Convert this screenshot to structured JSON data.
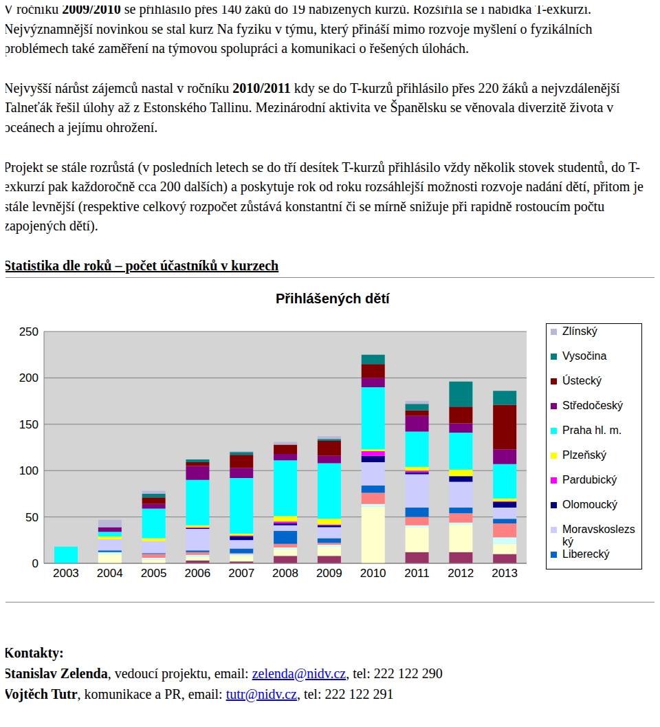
{
  "paragraphs": [
    [
      {
        "text": "V ročníku "
      },
      {
        "text": "2009/2010",
        "bold": true
      },
      {
        "text": " se přihlásilo přes 140 žáků do 19 nabízených kurzů. Rozšířila se i nabídka T-exkurzí. Nejvýznamnější novinkou se stal kurz Na fyziku v týmu, který přináší mimo rozvoje myšlení o fyzikálních problémech také zaměření na týmovou spolupráci a komunikaci o řešených úlohách."
      }
    ],
    [
      {
        "text": "Nejvyšší nárůst zájemců nastal v ročníku "
      },
      {
        "text": "2010/2011",
        "bold": true
      },
      {
        "text": " kdy se do T-kurzů přihlásilo přes 220 žáků a nejvzdálenější Talneťák řešil úlohy až z Estonského Tallinu. Mezinárodní aktivita ve Španělsku se věnovala diverzitě života v oceánech a jejímu ohrožení."
      }
    ],
    [
      {
        "text": "Projekt se stále rozrůstá (v posledních letech se do tří desítek T-kurzů přihlásilo vždy několik stovek studentů, do T-exkurzí pak každoročně cca 200 dalších) a poskytuje rok od roku rozsáhlejší možnosti rozvoje nadání dětí, přitom je stále levnější (respektive celkový rozpočet zůstává konstantní či se mírně snižuje při rapidně rostoucím počtu zapojených dětí)."
      }
    ]
  ],
  "heading": "Statistika dle roků – počet účastníků v kurzech",
  "chart_data": {
    "type": "bar",
    "title": "Přihlášených dětí",
    "stacked": true,
    "grid": true,
    "legend": "right",
    "categories": [
      "2003",
      "2004",
      "2005",
      "2006",
      "2007",
      "2008",
      "2009",
      "2010",
      "2011",
      "2012",
      "2013"
    ],
    "ylim": [
      0,
      250
    ],
    "yticks": [
      0,
      50,
      100,
      150,
      200,
      250
    ],
    "series": [
      {
        "color": "#993366",
        "values": [
          0,
          0,
          0,
          3,
          2,
          8,
          8,
          0,
          12,
          12,
          10
        ]
      },
      {
        "color": "#FFFFCC",
        "values": [
          0,
          10,
          4,
          4,
          6,
          7,
          10,
          61,
          27,
          30,
          11
        ]
      },
      {
        "color": "#CCFFFF",
        "values": [
          0,
          2,
          2,
          2,
          2,
          2,
          2,
          3,
          2,
          2,
          7
        ]
      },
      {
        "color": "#FF8080",
        "values": [
          0,
          0,
          4,
          3,
          1,
          4,
          2,
          12,
          9,
          10,
          15
        ]
      },
      {
        "name": "Liberecký",
        "color": "#0066CC",
        "values": [
          0,
          2,
          1,
          2,
          5,
          14,
          5,
          8,
          10,
          6,
          5
        ]
      },
      {
        "name": "Moravskoslezský",
        "color": "#CCCCFF",
        "values": [
          0,
          12,
          13,
          23,
          9,
          6,
          12,
          25,
          36,
          28,
          12
        ]
      },
      {
        "name": "Olomoucký",
        "color": "#000080",
        "values": [
          0,
          0,
          0,
          1,
          4,
          2,
          2,
          7,
          2,
          6,
          6
        ]
      },
      {
        "name": "Pardubický",
        "color": "#FF00FF",
        "values": [
          0,
          0,
          0,
          1,
          1,
          2,
          1,
          5,
          2,
          0,
          1
        ]
      },
      {
        "name": "Plzeňský",
        "color": "#FFFF00",
        "values": [
          0,
          3,
          3,
          2,
          2,
          6,
          6,
          2,
          4,
          7,
          3
        ]
      },
      {
        "name": "Praha hl. m.",
        "color": "#00FFFF",
        "values": [
          18,
          5,
          32,
          49,
          60,
          60,
          60,
          67,
          38,
          40,
          37
        ]
      },
      {
        "name": "Středočeský",
        "color": "#800080",
        "values": [
          0,
          5,
          5,
          15,
          11,
          7,
          8,
          10,
          17,
          10,
          16
        ]
      },
      {
        "name": "Ústecký",
        "color": "#800000",
        "values": [
          0,
          0,
          7,
          4,
          14,
          10,
          16,
          15,
          6,
          18,
          48
        ]
      },
      {
        "name": "Vysočina",
        "color": "#008080",
        "values": [
          0,
          0,
          4,
          3,
          3,
          0,
          2,
          10,
          7,
          27,
          15
        ]
      },
      {
        "name": "Zlínský",
        "color": "#B8B8D8",
        "values": [
          0,
          8,
          3,
          0,
          1,
          3,
          3,
          0,
          3,
          0,
          0
        ]
      }
    ]
  },
  "contacts": {
    "title": "Kontakty:",
    "people": [
      {
        "name": "Stanislav Zelenda",
        "text_before": ", vedoucí projektu, email: ",
        "email": "zelenda@nidv.cz",
        "text_after": ", tel: 222 122 290"
      },
      {
        "name": "Vojtěch Tutr",
        "text_before": ", komunikace a PR, email: ",
        "email": "tutr@nidv.cz",
        "text_after": ", tel: 222 122 291"
      }
    ]
  }
}
